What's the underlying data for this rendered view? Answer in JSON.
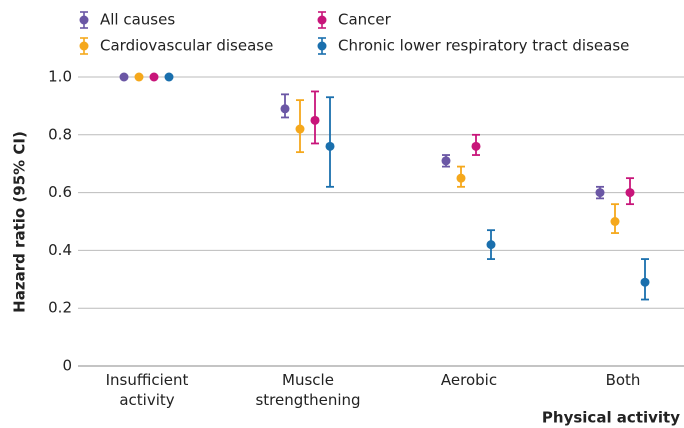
{
  "chart_data": {
    "type": "errorbar",
    "y_label": "Hazard ratio (95% CI)",
    "x_label": "Physical activity",
    "categories": [
      "Insufficient activity",
      "Muscle strengthening",
      "Aerobic",
      "Both"
    ],
    "ylim": [
      0,
      1.0
    ],
    "yticks": [
      0,
      0.2,
      0.4,
      0.6,
      0.8,
      {
        "value": 1,
        "label": "1.0"
      }
    ],
    "grid": true,
    "series": [
      {
        "name": "All causes",
        "color": "#6b57a5",
        "values": [
          1,
          0.89,
          0.71,
          0.6
        ],
        "lower": [
          null,
          0.86,
          0.69,
          0.58
        ],
        "upper": [
          null,
          0.94,
          0.73,
          0.62
        ]
      },
      {
        "name": "Cardiovascular disease",
        "color": "#f5a81c",
        "values": [
          1,
          0.82,
          0.65,
          0.5
        ],
        "lower": [
          null,
          0.74,
          0.62,
          0.46
        ],
        "upper": [
          null,
          0.92,
          0.69,
          0.56
        ]
      },
      {
        "name": "Cancer",
        "color": "#c8157a",
        "values": [
          1,
          0.85,
          0.76,
          0.6
        ],
        "lower": [
          null,
          0.77,
          0.73,
          0.56
        ],
        "upper": [
          null,
          0.95,
          0.8,
          0.65
        ]
      },
      {
        "name": "Chronic lower respiratory tract disease",
        "color": "#1a6fad",
        "values": [
          1,
          0.76,
          0.42,
          0.29
        ],
        "lower": [
          null,
          0.62,
          0.37,
          0.23
        ],
        "upper": [
          null,
          0.93,
          0.47,
          0.37
        ]
      }
    ]
  }
}
